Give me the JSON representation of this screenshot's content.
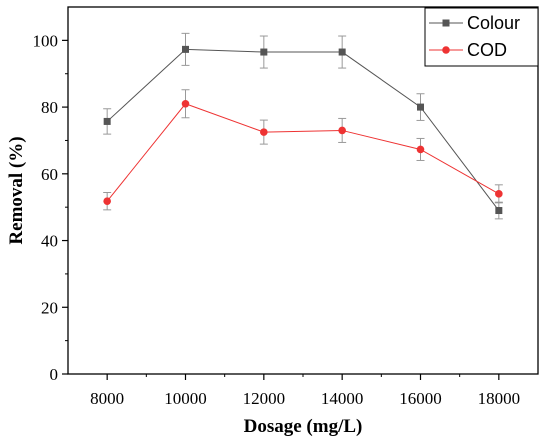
{
  "chart_data": {
    "type": "line",
    "title": "",
    "xlabel": "Dosage (mg/L)",
    "ylabel": "Removal (%)",
    "x": [
      8000,
      10000,
      12000,
      14000,
      16000,
      18000
    ],
    "x_ticks": [
      "8000",
      "10000",
      "12000",
      "14000",
      "16000",
      "18000"
    ],
    "y_ticks": [
      "0",
      "20",
      "40",
      "60",
      "80",
      "100"
    ],
    "xlim": [
      7000,
      19000
    ],
    "ylim": [
      0,
      110
    ],
    "grid": false,
    "legend_position": "top-right",
    "series": [
      {
        "name": "Colour",
        "color": "#555555",
        "marker": "square",
        "values": [
          75.7,
          97.3,
          96.5,
          96.5,
          80.0,
          49.0
        ],
        "errors": [
          3.8,
          4.8,
          4.8,
          4.8,
          4.0,
          2.5
        ]
      },
      {
        "name": "COD",
        "color": "#ee3333",
        "marker": "circle",
        "values": [
          51.8,
          81.0,
          72.5,
          73.0,
          67.3,
          54.0
        ],
        "errors": [
          2.6,
          4.2,
          3.6,
          3.6,
          3.3,
          2.7
        ]
      }
    ]
  }
}
